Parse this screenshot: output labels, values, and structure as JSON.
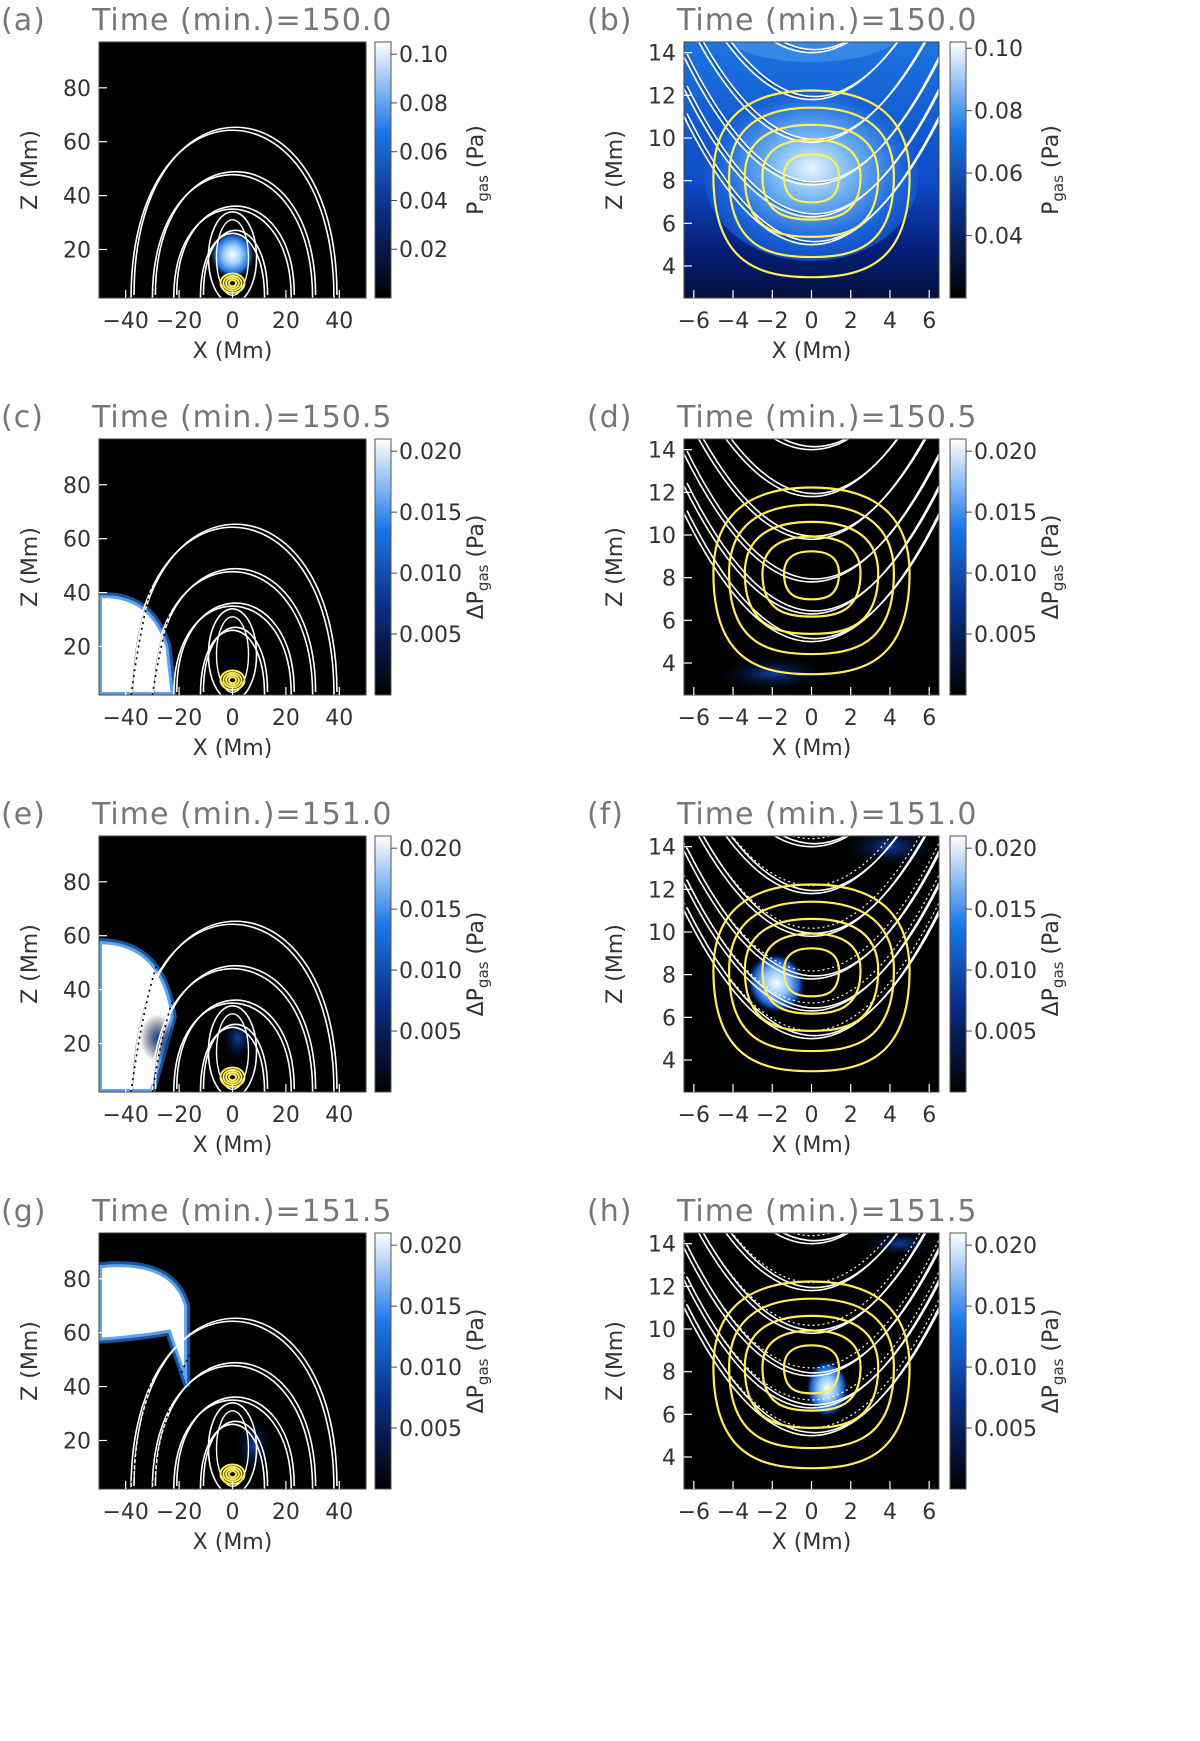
{
  "figure": {
    "panels": [
      {
        "label": "(a)",
        "time": "Time (min.)=150.0",
        "x_label": "X (Mm)",
        "y_label": "Z (Mm)",
        "cb_label": "P",
        "cb_sub": "gas",
        "cb_unit": "(Pa)"
      },
      {
        "label": "(b)",
        "time": "Time (min.)=150.0",
        "x_label": "X (Mm)",
        "y_label": "Z (Mm)",
        "cb_label": "P",
        "cb_sub": "gas",
        "cb_unit": "(Pa)"
      },
      {
        "label": "(c)",
        "time": "Time (min.)=150.5",
        "x_label": "X (Mm)",
        "y_label": "Z (Mm)",
        "cb_label": "ΔP",
        "cb_sub": "gas",
        "cb_unit": "(Pa)"
      },
      {
        "label": "(d)",
        "time": "Time (min.)=150.5",
        "x_label": "X (Mm)",
        "y_label": "Z (Mm)",
        "cb_label": "ΔP",
        "cb_sub": "gas",
        "cb_unit": "(Pa)"
      },
      {
        "label": "(e)",
        "time": "Time (min.)=151.0",
        "x_label": "X (Mm)",
        "y_label": "Z (Mm)",
        "cb_label": "ΔP",
        "cb_sub": "gas",
        "cb_unit": "(Pa)"
      },
      {
        "label": "(f)",
        "time": "Time (min.)=151.0",
        "x_label": "X (Mm)",
        "y_label": "Z (Mm)",
        "cb_label": "ΔP",
        "cb_sub": "gas",
        "cb_unit": "(Pa)"
      },
      {
        "label": "(g)",
        "time": "Time (min.)=151.5",
        "x_label": "X (Mm)",
        "y_label": "Z (Mm)",
        "cb_label": "ΔP",
        "cb_sub": "gas",
        "cb_unit": "(Pa)"
      },
      {
        "label": "(h)",
        "time": "Time (min.)=151.5",
        "x_label": "X (Mm)",
        "y_label": "Z (Mm)",
        "cb_label": "ΔP",
        "cb_sub": "gas",
        "cb_unit": "(Pa)"
      }
    ]
  },
  "chart_data": [
    {
      "type": "heatmap",
      "panel": "a",
      "x_range": [
        -50,
        50
      ],
      "y_range": [
        2,
        97
      ],
      "x_ticks": [
        "−40",
        "−20",
        "0",
        "20",
        "40"
      ],
      "x_tick_values": [
        -40,
        -20,
        0,
        20,
        40
      ],
      "y_ticks": [
        "20",
        "40",
        "60",
        "80"
      ],
      "y_tick_values": [
        20,
        40,
        60,
        80
      ],
      "colorbar": {
        "range": [
          0,
          0.105
        ],
        "ticks": [
          "0.02",
          "0.04",
          "0.06",
          "0.08",
          "0.10"
        ],
        "tick_values": [
          0.02,
          0.04,
          0.06,
          0.08,
          0.1
        ]
      },
      "colormap": "black-blue-white",
      "field_lines": "white",
      "contours": "yellow"
    },
    {
      "type": "heatmap",
      "panel": "b",
      "x_range": [
        -6.5,
        6.5
      ],
      "y_range": [
        2.5,
        14.5
      ],
      "x_ticks": [
        "−6",
        "−4",
        "−2",
        "0",
        "2",
        "4",
        "6"
      ],
      "x_tick_values": [
        -6,
        -4,
        -2,
        0,
        2,
        4,
        6
      ],
      "y_ticks": [
        "4",
        "6",
        "8",
        "10",
        "12",
        "14"
      ],
      "y_tick_values": [
        4,
        6,
        8,
        10,
        12,
        14
      ],
      "colorbar": {
        "range": [
          0.02,
          0.102
        ],
        "ticks": [
          "0.04",
          "0.06",
          "0.08",
          "0.10"
        ],
        "tick_values": [
          0.04,
          0.06,
          0.08,
          0.1
        ]
      },
      "colormap": "black-blue-white",
      "field_lines": "white",
      "contours": "yellow"
    },
    {
      "type": "heatmap",
      "panel": "c",
      "x_range": [
        -50,
        50
      ],
      "y_range": [
        2,
        97
      ],
      "x_ticks": [
        "−40",
        "−20",
        "0",
        "20",
        "40"
      ],
      "x_tick_values": [
        -40,
        -20,
        0,
        20,
        40
      ],
      "y_ticks": [
        "20",
        "40",
        "60",
        "80"
      ],
      "y_tick_values": [
        20,
        40,
        60,
        80
      ],
      "colorbar": {
        "range": [
          0,
          0.021
        ],
        "ticks": [
          "0.005",
          "0.010",
          "0.015",
          "0.020"
        ],
        "tick_values": [
          0.005,
          0.01,
          0.015,
          0.02
        ]
      },
      "colormap": "black-blue-white",
      "field_lines": "white",
      "contours": "yellow"
    },
    {
      "type": "heatmap",
      "panel": "d",
      "x_range": [
        -6.5,
        6.5
      ],
      "y_range": [
        2.5,
        14.5
      ],
      "x_ticks": [
        "−6",
        "−4",
        "−2",
        "0",
        "2",
        "4",
        "6"
      ],
      "x_tick_values": [
        -6,
        -4,
        -2,
        0,
        2,
        4,
        6
      ],
      "y_ticks": [
        "4",
        "6",
        "8",
        "10",
        "12",
        "14"
      ],
      "y_tick_values": [
        4,
        6,
        8,
        10,
        12,
        14
      ],
      "colorbar": {
        "range": [
          0,
          0.021
        ],
        "ticks": [
          "0.005",
          "0.010",
          "0.015",
          "0.020"
        ],
        "tick_values": [
          0.005,
          0.01,
          0.015,
          0.02
        ]
      },
      "colormap": "black-blue-white",
      "field_lines": "white",
      "contours": "yellow"
    },
    {
      "type": "heatmap",
      "panel": "e",
      "x_range": [
        -50,
        50
      ],
      "y_range": [
        2,
        97
      ],
      "x_ticks": [
        "−40",
        "−20",
        "0",
        "20",
        "40"
      ],
      "x_tick_values": [
        -40,
        -20,
        0,
        20,
        40
      ],
      "y_ticks": [
        "20",
        "40",
        "60",
        "80"
      ],
      "y_tick_values": [
        20,
        40,
        60,
        80
      ],
      "colorbar": {
        "range": [
          0,
          0.021
        ],
        "ticks": [
          "0.005",
          "0.010",
          "0.015",
          "0.020"
        ],
        "tick_values": [
          0.005,
          0.01,
          0.015,
          0.02
        ]
      },
      "colormap": "black-blue-white",
      "field_lines": "white",
      "contours": "yellow"
    },
    {
      "type": "heatmap",
      "panel": "f",
      "x_range": [
        -6.5,
        6.5
      ],
      "y_range": [
        2.5,
        14.5
      ],
      "x_ticks": [
        "−6",
        "−4",
        "−2",
        "0",
        "2",
        "4",
        "6"
      ],
      "x_tick_values": [
        -6,
        -4,
        -2,
        0,
        2,
        4,
        6
      ],
      "y_ticks": [
        "4",
        "6",
        "8",
        "10",
        "12",
        "14"
      ],
      "y_tick_values": [
        4,
        6,
        8,
        10,
        12,
        14
      ],
      "colorbar": {
        "range": [
          0,
          0.021
        ],
        "ticks": [
          "0.005",
          "0.010",
          "0.015",
          "0.020"
        ],
        "tick_values": [
          0.005,
          0.01,
          0.015,
          0.02
        ]
      },
      "colormap": "black-blue-white",
      "field_lines": "white",
      "contours": "yellow"
    },
    {
      "type": "heatmap",
      "panel": "g",
      "x_range": [
        -50,
        50
      ],
      "y_range": [
        2,
        97
      ],
      "x_ticks": [
        "−40",
        "−20",
        "0",
        "20",
        "40"
      ],
      "x_tick_values": [
        -40,
        -20,
        0,
        20,
        40
      ],
      "y_ticks": [
        "20",
        "40",
        "60",
        "80"
      ],
      "y_tick_values": [
        20,
        40,
        60,
        80
      ],
      "colorbar": {
        "range": [
          0,
          0.021
        ],
        "ticks": [
          "0.005",
          "0.010",
          "0.015",
          "0.020"
        ],
        "tick_values": [
          0.005,
          0.01,
          0.015,
          0.02
        ]
      },
      "colormap": "black-blue-white",
      "field_lines": "white",
      "contours": "yellow"
    },
    {
      "type": "heatmap",
      "panel": "h",
      "x_range": [
        -6.5,
        6.5
      ],
      "y_range": [
        2.5,
        14.5
      ],
      "x_ticks": [
        "−6",
        "−4",
        "−2",
        "0",
        "2",
        "4",
        "6"
      ],
      "x_tick_values": [
        -6,
        -4,
        -2,
        0,
        2,
        4,
        6
      ],
      "y_ticks": [
        "4",
        "6",
        "8",
        "10",
        "12",
        "14"
      ],
      "y_tick_values": [
        4,
        6,
        8,
        10,
        12,
        14
      ],
      "colorbar": {
        "range": [
          0,
          0.021
        ],
        "ticks": [
          "0.005",
          "0.010",
          "0.015",
          "0.020"
        ],
        "tick_values": [
          0.005,
          0.01,
          0.015,
          0.02
        ]
      },
      "colormap": "black-blue-white",
      "field_lines": "white",
      "contours": "yellow"
    }
  ],
  "colors": {
    "background": "#000000",
    "mid": "#1a6fe0",
    "high": "#ffffff",
    "field_line": "#ffffff",
    "contour": "#ffee55",
    "title": "#777777",
    "text": "#333333"
  }
}
